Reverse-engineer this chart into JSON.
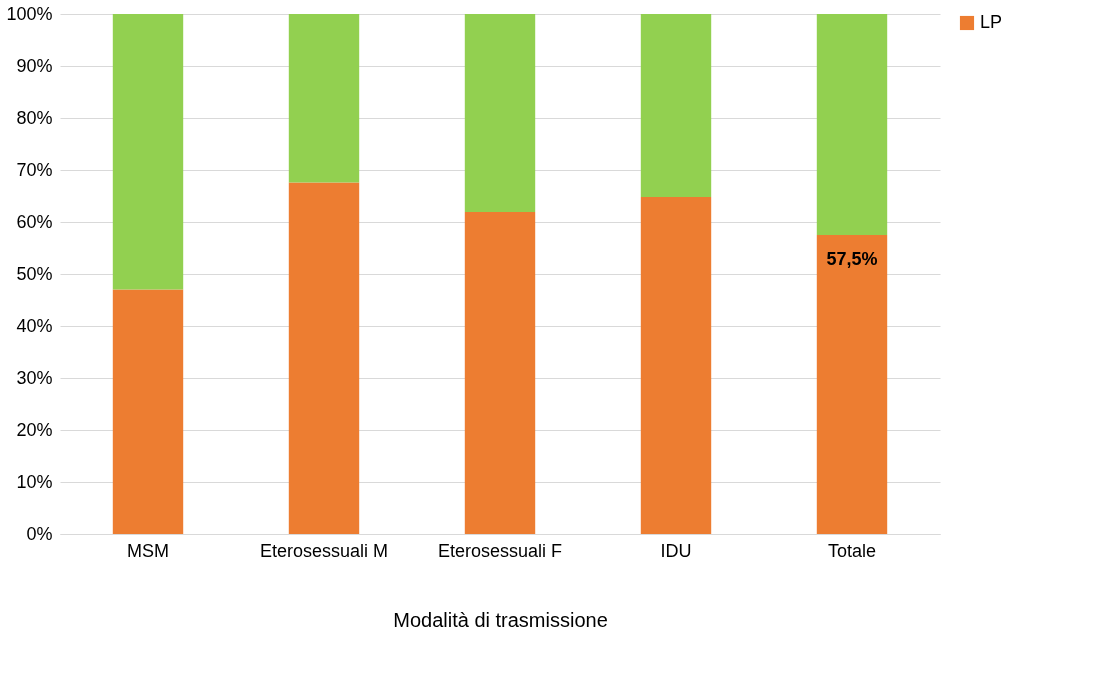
{
  "chart_data": {
    "type": "bar",
    "stacked": true,
    "xlabel": "Modalità di trasmissione",
    "categories": [
      "MSM",
      "Eterosessuali M",
      "Eterosessuali F",
      "IDU",
      "Totale"
    ],
    "series": [
      {
        "name": "LP",
        "color": "#ed7d31",
        "values": [
          47.0,
          67.6,
          61.9,
          64.8,
          57.5
        ],
        "value_labels": [
          null,
          null,
          null,
          null,
          "57,5%"
        ]
      },
      {
        "color": "#92d050",
        "values": [
          53.0,
          32.4,
          38.1,
          35.2,
          42.5
        ]
      }
    ],
    "ylim": [
      0,
      100
    ],
    "yticks": [
      {
        "value": 0,
        "label": "0%"
      },
      {
        "value": 10,
        "label": "10%"
      },
      {
        "value": 20,
        "label": "20%"
      },
      {
        "value": 30,
        "label": "30%"
      },
      {
        "value": 40,
        "label": "40%"
      },
      {
        "value": 50,
        "label": "50%"
      },
      {
        "value": 60,
        "label": "60%"
      },
      {
        "value": 70,
        "label": "70%"
      },
      {
        "value": 80,
        "label": "80%"
      },
      {
        "value": 90,
        "label": "90%"
      },
      {
        "value": 100,
        "label": "100%"
      }
    ],
    "grid": "y",
    "legend": "right"
  }
}
